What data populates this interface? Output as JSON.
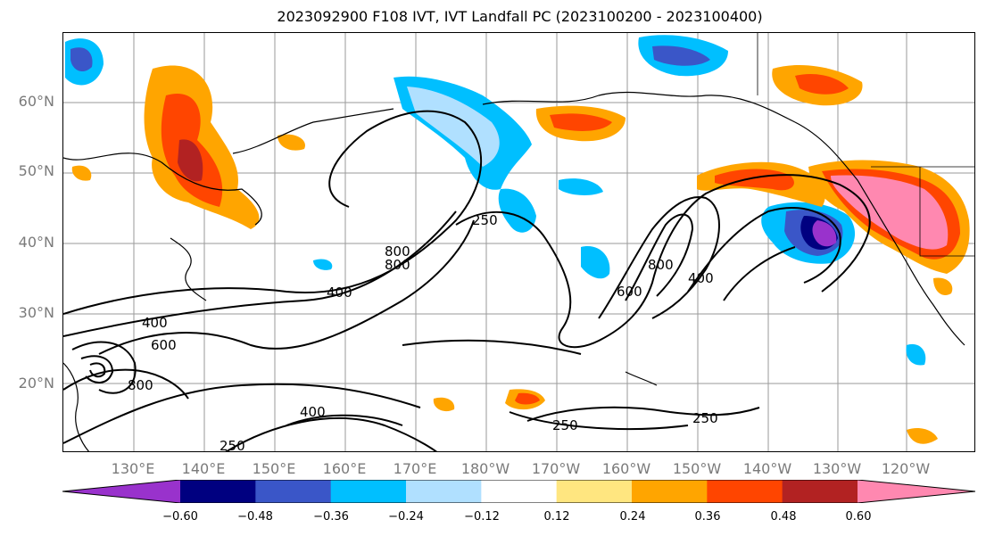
{
  "title": "2023092900 F108 IVT, IVT Landfall PC (2023100200 - 2023100400)",
  "lat_labels": [
    "60°N",
    "50°N",
    "40°N",
    "30°N",
    "20°N"
  ],
  "lon_labels": [
    "130°E",
    "140°E",
    "150°E",
    "160°E",
    "170°E",
    "180°W",
    "170°W",
    "160°W",
    "150°W",
    "140°W",
    "130°W",
    "120°W"
  ],
  "colorbar": {
    "colors": [
      "#9932CC",
      "#000080",
      "#3A56C8",
      "#00BFFF",
      "#B0E0FF",
      "#FFFFFF",
      "#FFE680",
      "#FFA500",
      "#FF4500",
      "#B22222",
      "#FF88B0"
    ],
    "tick_labels": [
      "−0.60",
      "−0.48",
      "−0.36",
      "−0.24",
      "−0.12",
      "0.12",
      "0.24",
      "0.36",
      "0.48",
      "0.60"
    ]
  },
  "contour_labels": [
    "400",
    "600",
    "800",
    "800",
    "800",
    "400",
    "250",
    "400",
    "600",
    "800",
    "400",
    "250",
    "250",
    "250"
  ]
}
